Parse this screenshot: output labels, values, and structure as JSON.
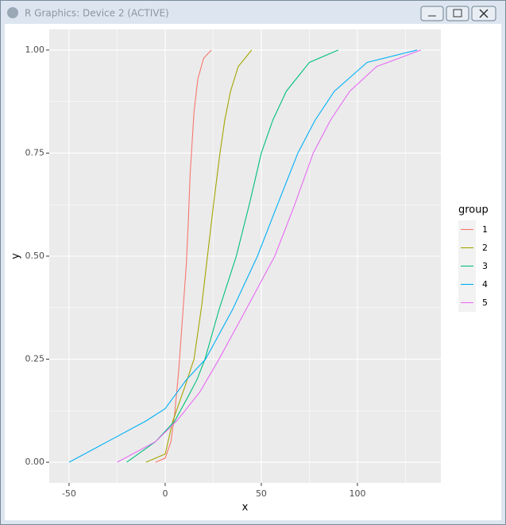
{
  "window": {
    "title": "R Graphics: Device 2 (ACTIVE)"
  },
  "chart_data": {
    "type": "line",
    "x_label": "x",
    "y_label": "y",
    "legend_title": "group",
    "xlim": [
      -60.3,
      143.4
    ],
    "ylim": [
      -0.05,
      1.05
    ],
    "xticks": [
      -50,
      0,
      50,
      100
    ],
    "yticks": [
      {
        "value": 0,
        "label": "0.00"
      },
      {
        "value": 0.25,
        "label": "0.25"
      },
      {
        "value": 0.5,
        "label": "0.50"
      },
      {
        "value": 0.75,
        "label": "0.75"
      },
      {
        "value": 1,
        "label": "1.00"
      }
    ],
    "x_minor_ticks": [
      -25,
      25,
      75,
      125
    ],
    "y_minor_ticks": [
      0.125,
      0.375,
      0.625,
      0.875
    ],
    "grid": true,
    "legend_position": "right",
    "series": [
      {
        "name": "1",
        "color": "#F8766D",
        "x": [
          -5,
          0,
          3,
          5,
          7,
          9,
          11,
          12,
          13,
          15,
          17,
          20,
          24
        ],
        "values": [
          0,
          0.01,
          0.05,
          0.12,
          0.22,
          0.35,
          0.48,
          0.58,
          0.7,
          0.85,
          0.93,
          0.98,
          1
        ]
      },
      {
        "name": "2",
        "color": "#A3A500",
        "x": [
          -10,
          0,
          4,
          10,
          15,
          19,
          22,
          25,
          28.5,
          31,
          34,
          38,
          45
        ],
        "values": [
          0,
          0.02,
          0.1,
          0.18,
          0.25,
          0.38,
          0.5,
          0.62,
          0.75,
          0.83,
          0.9,
          0.96,
          1
        ]
      },
      {
        "name": "3",
        "color": "#00BF7D",
        "x": [
          -20,
          -5,
          5,
          12,
          16.5,
          20.7,
          28,
          37,
          44,
          50,
          56,
          63,
          75,
          90
        ],
        "values": [
          0,
          0.05,
          0.1,
          0.16,
          0.2,
          0.25,
          0.37,
          0.5,
          0.63,
          0.75,
          0.83,
          0.9,
          0.97,
          1
        ]
      },
      {
        "name": "4",
        "color": "#00B0F6",
        "x": [
          -50,
          -30,
          -10,
          0,
          11,
          21,
          35,
          48,
          58,
          69,
          78,
          88,
          105,
          131
        ],
        "values": [
          0,
          0.05,
          0.1,
          0.13,
          0.2,
          0.25,
          0.37,
          0.5,
          0.62,
          0.75,
          0.83,
          0.9,
          0.97,
          1
        ]
      },
      {
        "name": "5",
        "color": "#E76BF3",
        "x": [
          -25,
          -5,
          6,
          18,
          28,
          42,
          57,
          67,
          77,
          86,
          96,
          110,
          133
        ],
        "values": [
          0,
          0.05,
          0.1,
          0.17,
          0.25,
          0.37,
          0.5,
          0.62,
          0.75,
          0.83,
          0.9,
          0.96,
          1
        ]
      }
    ]
  }
}
